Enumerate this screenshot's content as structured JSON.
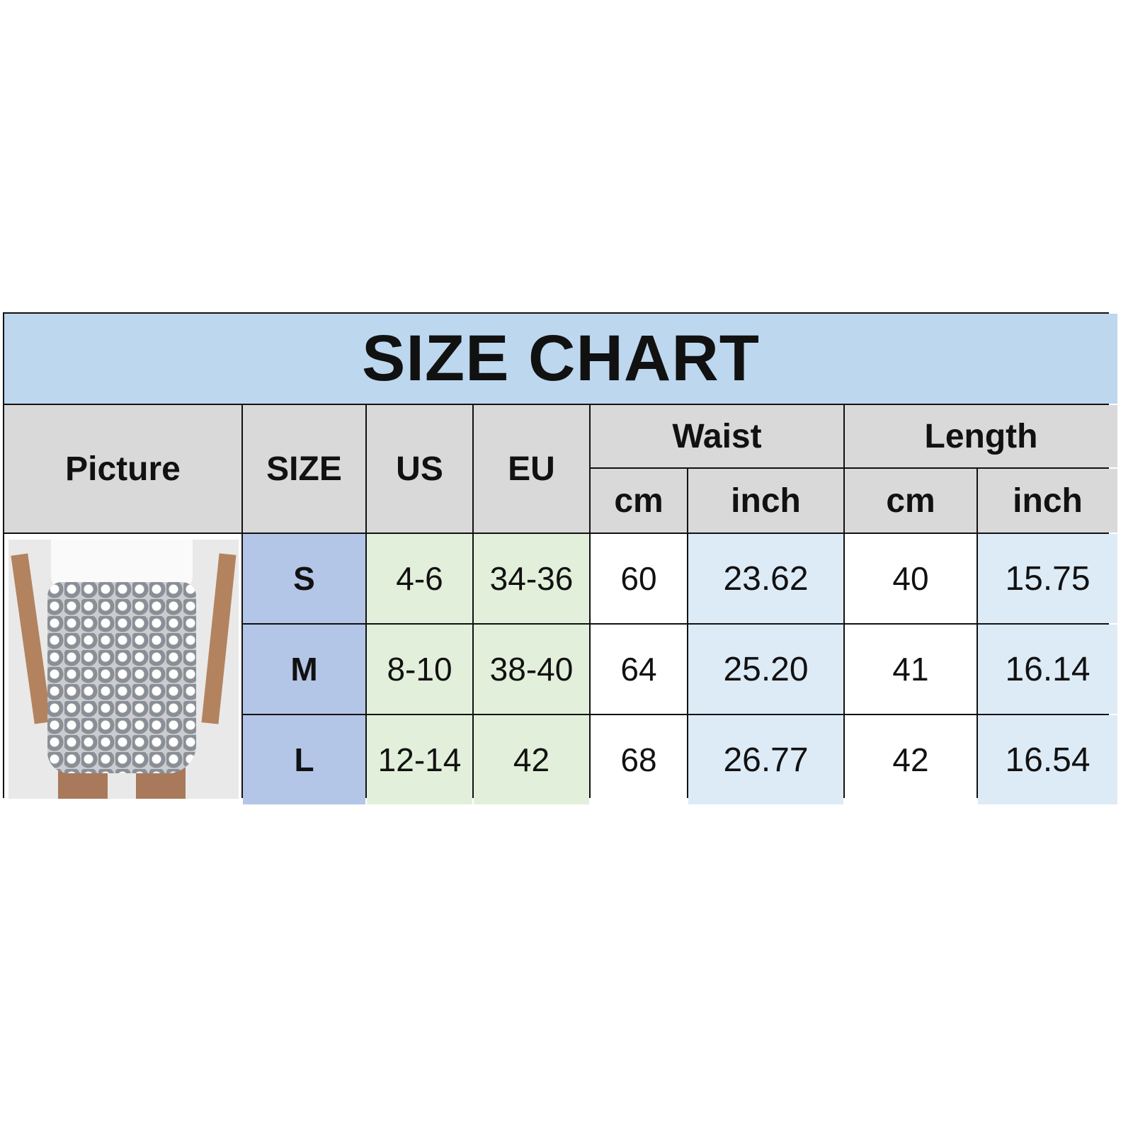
{
  "title": "SIZE CHART",
  "headers": {
    "picture": "Picture",
    "size": "SIZE",
    "us": "US",
    "eu": "EU",
    "waist": "Waist",
    "length": "Length",
    "waist_cm": "cm",
    "waist_inch": "inch",
    "length_cm": "cm",
    "length_inch": "inch"
  },
  "rows": [
    {
      "size": "S",
      "us": "4-6",
      "eu": "34-36",
      "waist_cm": "60",
      "waist_inch": "23.62",
      "length_cm": "40",
      "length_inch": "15.75"
    },
    {
      "size": "M",
      "us": "8-10",
      "eu": "38-40",
      "waist_cm": "64",
      "waist_inch": "25.20",
      "length_cm": "41",
      "length_inch": "16.14"
    },
    {
      "size": "L",
      "us": "12-14",
      "eu": "42",
      "waist_cm": "68",
      "waist_inch": "26.77",
      "length_cm": "42",
      "length_inch": "16.54"
    }
  ],
  "colors": {
    "title_bg": "#bdd7ee",
    "header_bg": "#d9d9d9",
    "size_bg": "#b4c6e7",
    "us_eu_bg": "#e2efda",
    "inch_bg": "#ddebf7"
  }
}
